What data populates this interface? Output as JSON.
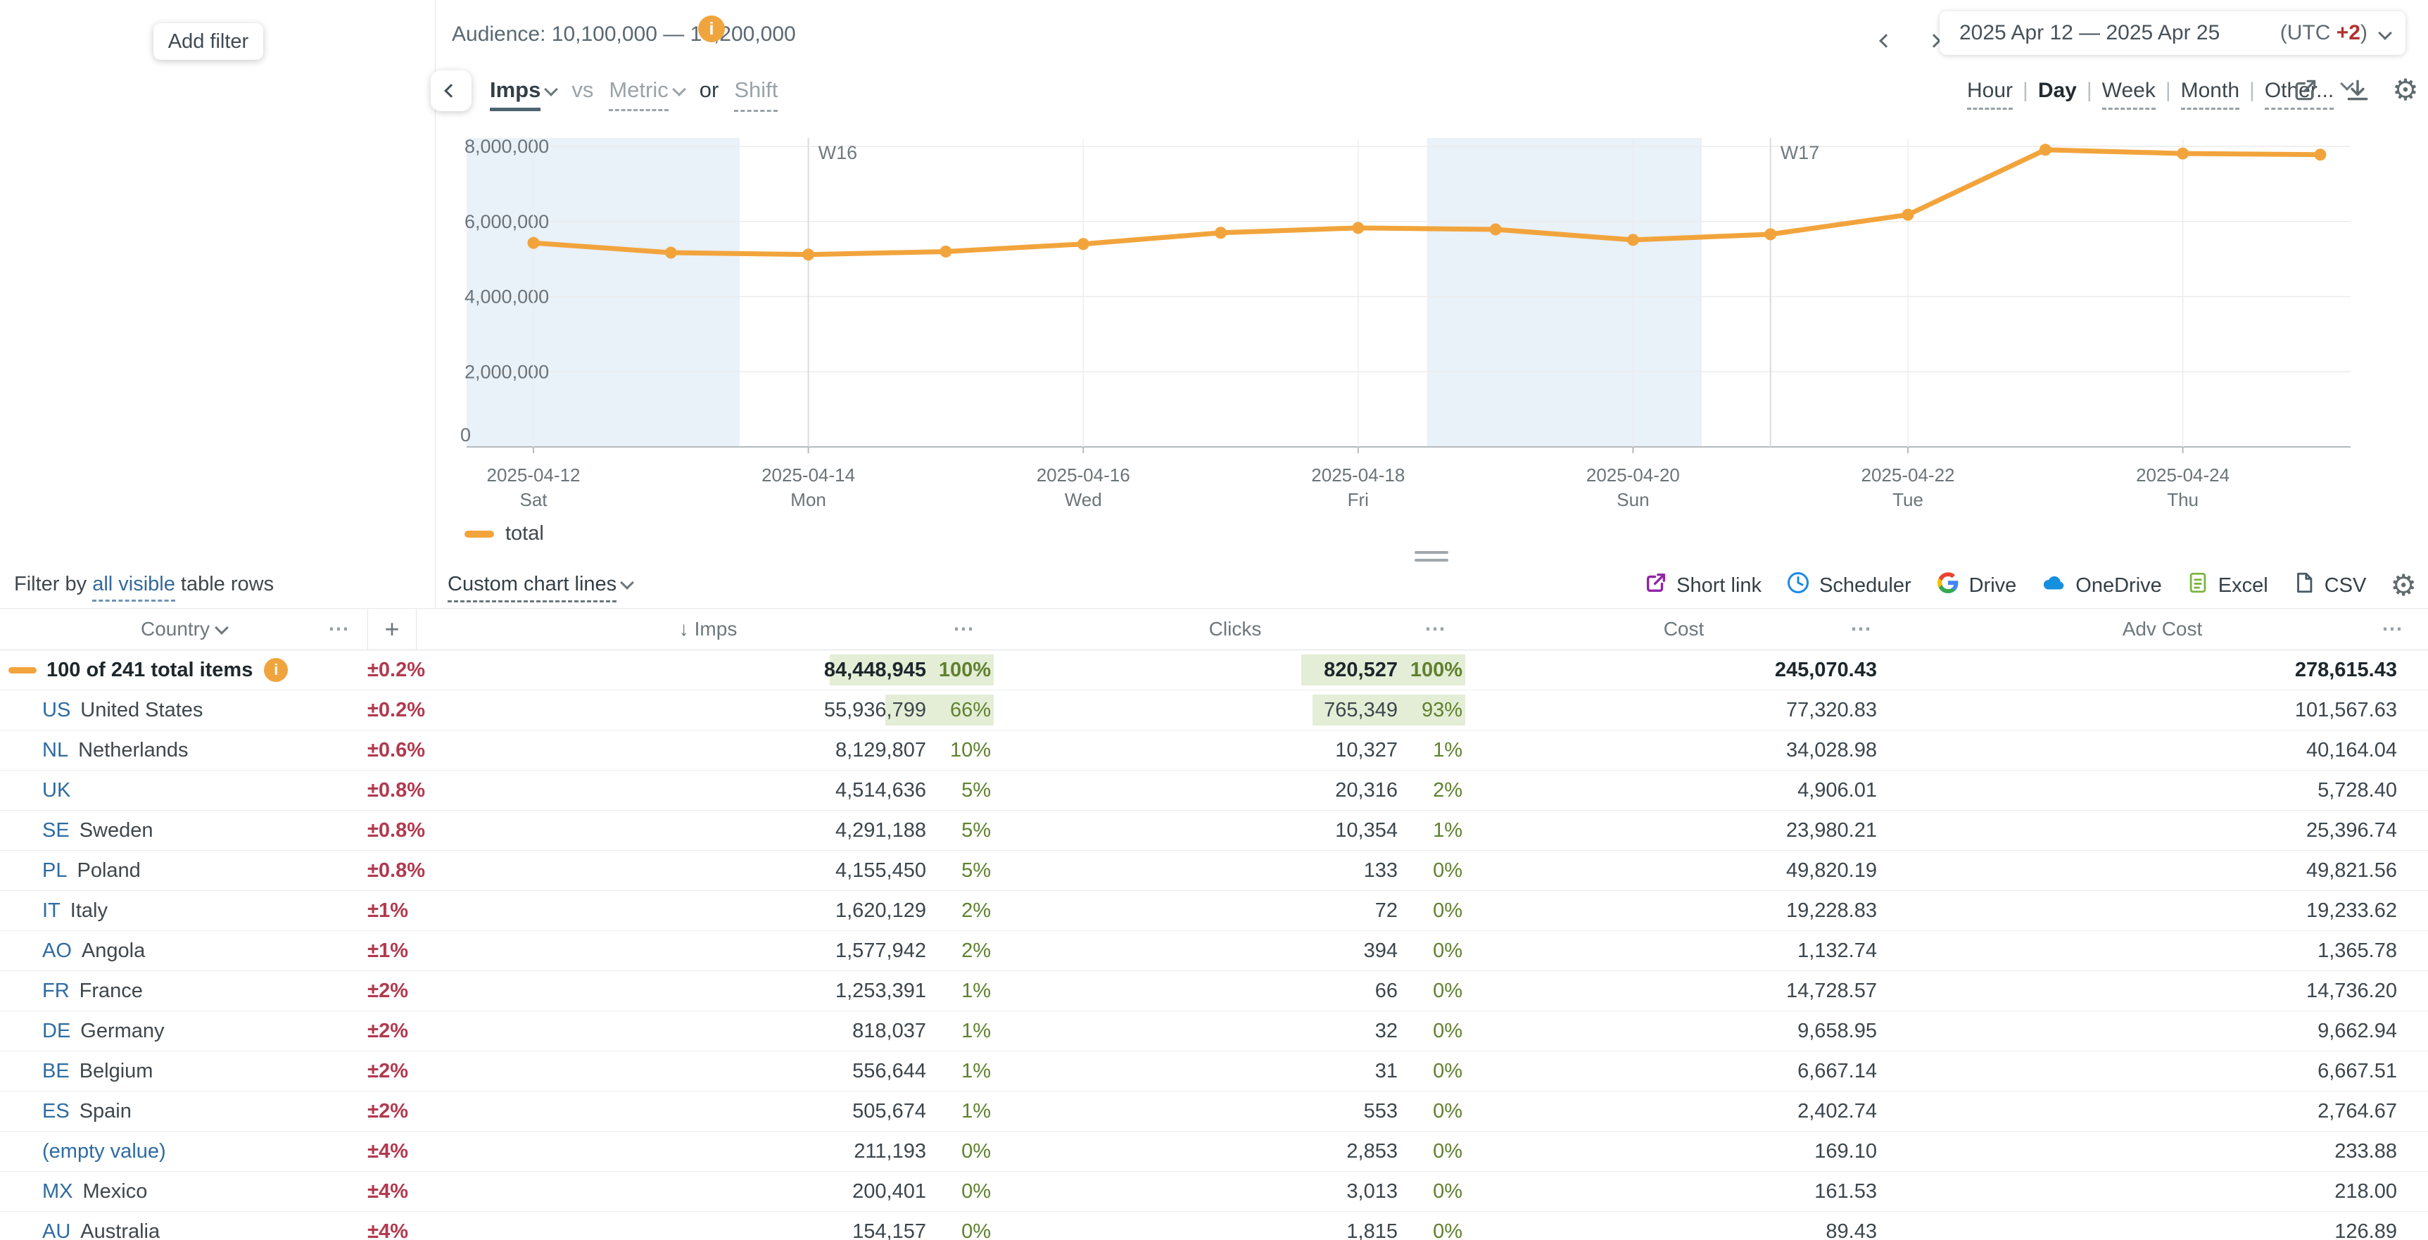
{
  "sidebar": {
    "add_filter": "Add filter"
  },
  "header": {
    "audience": "Audience: 10,100,000 — 10,200,000",
    "date_range": "2025 Apr 12 — 2025 Apr 25",
    "tz_prefix": "(UTC ",
    "tz_value": "+2",
    "tz_suffix": ")"
  },
  "controls": {
    "imps_label": "Imps",
    "vs_label": "vs",
    "metric_label": "Metric",
    "or_label": "or",
    "shift_label": "Shift",
    "granularities": [
      {
        "label": "Hour",
        "selected": false
      },
      {
        "label": "Day",
        "selected": true
      },
      {
        "label": "Week",
        "selected": false
      },
      {
        "label": "Month",
        "selected": false
      },
      {
        "label": "Other...",
        "selected": false,
        "chevron": true
      }
    ]
  },
  "chart_data": {
    "type": "line",
    "title": "",
    "xlabel": "",
    "ylabel": "",
    "ylim": [
      0,
      8000000
    ],
    "y_ticks": [
      0,
      2000000,
      4000000,
      6000000,
      8000000
    ],
    "y_tick_labels": [
      "0",
      "2,000,000",
      "4,000,000",
      "6,000,000",
      "8,000,000"
    ],
    "x": [
      "2025-04-12",
      "2025-04-13",
      "2025-04-14",
      "2025-04-15",
      "2025-04-16",
      "2025-04-17",
      "2025-04-18",
      "2025-04-19",
      "2025-04-20",
      "2025-04-21",
      "2025-04-22",
      "2025-04-23",
      "2025-04-24",
      "2025-04-25"
    ],
    "x_ticks": [
      {
        "index": 0,
        "date": "2025-04-12",
        "day": "Sat"
      },
      {
        "index": 2,
        "date": "2025-04-14",
        "day": "Mon"
      },
      {
        "index": 4,
        "date": "2025-04-16",
        "day": "Wed"
      },
      {
        "index": 6,
        "date": "2025-04-18",
        "day": "Fri"
      },
      {
        "index": 8,
        "date": "2025-04-20",
        "day": "Sun"
      },
      {
        "index": 10,
        "date": "2025-04-22",
        "day": "Tue"
      },
      {
        "index": 12,
        "date": "2025-04-24",
        "day": "Thu"
      }
    ],
    "week_markers": [
      {
        "label": "W16",
        "x_index": 2
      },
      {
        "label": "W17",
        "x_index": 9
      }
    ],
    "weekend_bands": [
      [
        0,
        1
      ],
      [
        7,
        8
      ]
    ],
    "series": [
      {
        "name": "total",
        "color": "#f2a43c",
        "values": [
          5430000,
          5170000,
          5120000,
          5200000,
          5400000,
          5700000,
          5830000,
          5790000,
          5510000,
          5660000,
          6180000,
          7910000,
          7810000,
          7780000
        ]
      }
    ],
    "legend_position": "bottom-left",
    "grid": true
  },
  "filter_bar": {
    "prefix": "Filter by ",
    "link": "all visible",
    "suffix": " table rows"
  },
  "custom_lines": {
    "label": "Custom chart lines"
  },
  "export_bar": {
    "items": [
      {
        "label": "Short link",
        "icon": "short-link-icon"
      },
      {
        "label": "Scheduler",
        "icon": "scheduler-clock-icon"
      },
      {
        "label": "Drive",
        "icon": "google-drive-icon"
      },
      {
        "label": "OneDrive",
        "icon": "onedrive-cloud-icon"
      },
      {
        "label": "Excel",
        "icon": "excel-file-icon"
      },
      {
        "label": "CSV",
        "icon": "csv-file-icon"
      }
    ]
  },
  "table": {
    "sort_indicator": "↓",
    "menu_icon": "⋯",
    "columns": {
      "country": "Country",
      "add": "+",
      "imps": "Imps",
      "clicks": "Clicks",
      "cost": "Cost",
      "adv_cost": "Adv Cost"
    },
    "rows": [
      {
        "total": true,
        "label": "100 of 241 total items",
        "err": "±0.2%",
        "imps": "84,448,945",
        "imps_pct": 100,
        "clicks": "820,527",
        "clicks_pct": 100,
        "cost": "245,070.43",
        "adv": "278,615.43"
      },
      {
        "code": "US",
        "name": "United States",
        "err": "±0.2%",
        "imps": "55,936,799",
        "imps_pct": 66,
        "clicks": "765,349",
        "clicks_pct": 93,
        "cost": "77,320.83",
        "adv": "101,567.63"
      },
      {
        "code": "NL",
        "name": "Netherlands",
        "err": "±0.6%",
        "imps": "8,129,807",
        "imps_pct": 10,
        "clicks": "10,327",
        "clicks_pct": 1,
        "cost": "34,028.98",
        "adv": "40,164.04"
      },
      {
        "code": "UK",
        "name": "",
        "err": "±0.8%",
        "imps": "4,514,636",
        "imps_pct": 5,
        "clicks": "20,316",
        "clicks_pct": 2,
        "cost": "4,906.01",
        "adv": "5,728.40"
      },
      {
        "code": "SE",
        "name": "Sweden",
        "err": "±0.8%",
        "imps": "4,291,188",
        "imps_pct": 5,
        "clicks": "10,354",
        "clicks_pct": 1,
        "cost": "23,980.21",
        "adv": "25,396.74"
      },
      {
        "code": "PL",
        "name": "Poland",
        "err": "±0.8%",
        "imps": "4,155,450",
        "imps_pct": 5,
        "clicks": "133",
        "clicks_pct": 0,
        "cost": "49,820.19",
        "adv": "49,821.56"
      },
      {
        "code": "IT",
        "name": "Italy",
        "err": "±1%",
        "imps": "1,620,129",
        "imps_pct": 2,
        "clicks": "72",
        "clicks_pct": 0,
        "cost": "19,228.83",
        "adv": "19,233.62"
      },
      {
        "code": "AO",
        "name": "Angola",
        "err": "±1%",
        "imps": "1,577,942",
        "imps_pct": 2,
        "clicks": "394",
        "clicks_pct": 0,
        "cost": "1,132.74",
        "adv": "1,365.78"
      },
      {
        "code": "FR",
        "name": "France",
        "err": "±2%",
        "imps": "1,253,391",
        "imps_pct": 1,
        "clicks": "66",
        "clicks_pct": 0,
        "cost": "14,728.57",
        "adv": "14,736.20"
      },
      {
        "code": "DE",
        "name": "Germany",
        "err": "±2%",
        "imps": "818,037",
        "imps_pct": 1,
        "clicks": "32",
        "clicks_pct": 0,
        "cost": "9,658.95",
        "adv": "9,662.94"
      },
      {
        "code": "BE",
        "name": "Belgium",
        "err": "±2%",
        "imps": "556,644",
        "imps_pct": 1,
        "clicks": "31",
        "clicks_pct": 0,
        "cost": "6,667.14",
        "adv": "6,667.51"
      },
      {
        "code": "ES",
        "name": "Spain",
        "err": "±2%",
        "imps": "505,674",
        "imps_pct": 1,
        "clicks": "553",
        "clicks_pct": 0,
        "cost": "2,402.74",
        "adv": "2,764.67"
      },
      {
        "empty": true,
        "label": "(empty value)",
        "err": "±4%",
        "imps": "211,193",
        "imps_pct": 0,
        "clicks": "2,853",
        "clicks_pct": 0,
        "cost": "169.10",
        "adv": "233.88"
      },
      {
        "code": "MX",
        "name": "Mexico",
        "err": "±4%",
        "imps": "200,401",
        "imps_pct": 0,
        "clicks": "3,013",
        "clicks_pct": 0,
        "cost": "161.53",
        "adv": "218.00"
      },
      {
        "code": "AU",
        "name": "Australia",
        "err": "±4%",
        "imps": "154,157",
        "imps_pct": 0,
        "clicks": "1,815",
        "clicks_pct": 0,
        "cost": "89.43",
        "adv": "126.89"
      }
    ]
  },
  "colors": {
    "accent_orange": "#f2a43c",
    "weekend_band": "#e9f1f9",
    "error_red": "#b2394f",
    "pct_green": "#60812f",
    "pct_bar_green": "#e4eed6",
    "link_blue": "#2d6ca2",
    "tz_red": "#b23131"
  }
}
